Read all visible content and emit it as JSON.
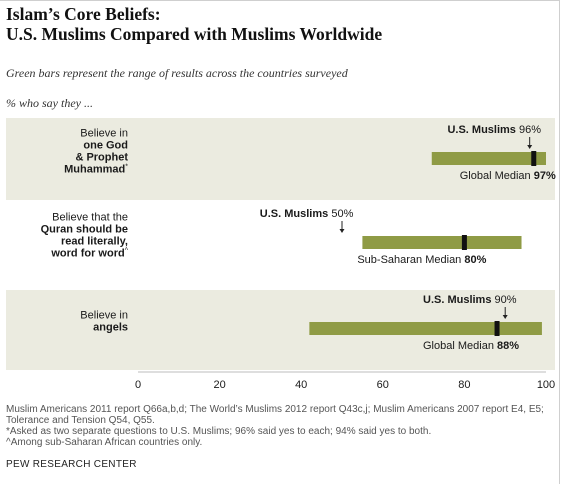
{
  "title_line1": "Islam’s Core Beliefs:",
  "title_line2": "U.S. Muslims Compared with Muslims Worldwide",
  "subtitle": "Green bars represent the range of results across the countries surveyed",
  "lead_in": "% who say they ...",
  "colors": {
    "band": "#ebebe0",
    "range_bar": "#8f9b45",
    "marker": "#111111",
    "axis": "#bdbdbd"
  },
  "chart_data": {
    "type": "range-dot",
    "xlim": [
      0,
      100
    ],
    "xticks": [
      "0",
      "20",
      "40",
      "60",
      "80",
      "100"
    ],
    "grid": false,
    "rows": [
      {
        "label_lines": [
          {
            "text": "Believe in",
            "bold": false
          },
          {
            "text": "one God",
            "bold": true
          },
          {
            "text": "& Prophet",
            "bold": true
          },
          {
            "text": "Muhammad",
            "bold": true,
            "suffix": "*"
          }
        ],
        "range": [
          72,
          100
        ],
        "median": 97,
        "median_label": "Global Median",
        "median_value_text": "97%",
        "us_value": 96,
        "us_label": "U.S. Muslims",
        "us_value_text": "96%",
        "shaded": true
      },
      {
        "label_lines": [
          {
            "text": "Believe that the",
            "bold": false
          },
          {
            "text": "Quran should be",
            "bold": true
          },
          {
            "text": "read literally,",
            "bold": true
          },
          {
            "text": "word for word",
            "bold": true,
            "suffix": "^"
          }
        ],
        "range": [
          55,
          94
        ],
        "median": 80,
        "median_label": "Sub-Saharan Median",
        "median_value_text": "80%",
        "us_value": 50,
        "us_label": "U.S. Muslims",
        "us_value_text": "50%",
        "shaded": false
      },
      {
        "label_lines": [
          {
            "text": "Believe in",
            "bold": false
          },
          {
            "text": "angels",
            "bold": true
          }
        ],
        "range": [
          42,
          99
        ],
        "median": 88,
        "median_label": "Global Median",
        "median_value_text": "88%",
        "us_value": 90,
        "us_label": "U.S. Muslims",
        "us_value_text": "90%",
        "shaded": true
      }
    ]
  },
  "footer": {
    "source": "Muslim Americans 2011 report Q66a,b,d; The World’s Muslims 2012 report Q43c,j; Muslim Americans 2007 report E4, E5; Tolerance and Tension Q54, Q55.",
    "note1": "*Asked as two separate questions to U.S. Muslims; 96% said yes to each; 94% said yes to both.",
    "note2": "^Among sub-Saharan African countries only."
  },
  "brand": "PEW RESEARCH CENTER"
}
